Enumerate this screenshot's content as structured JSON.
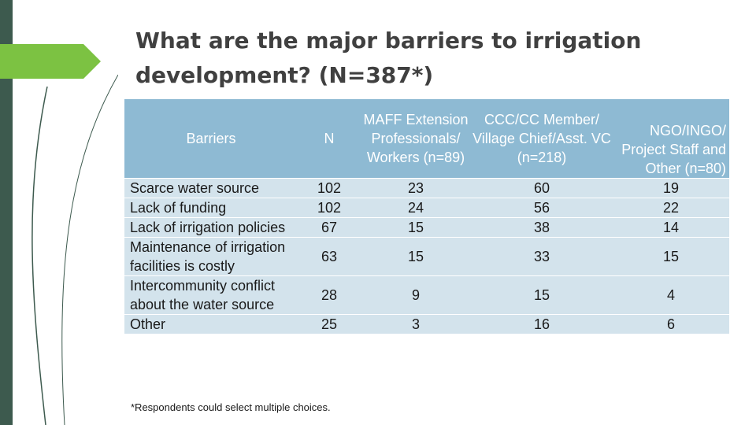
{
  "slide": {
    "title": "What are the major barriers to irrigation development? (N=387*)",
    "footnote": "*Respondents could select multiple choices.",
    "colors": {
      "accent_green": "#7cc242",
      "side_bar": "#3d5a4e",
      "header_bg": "#8ebad3",
      "row_bg": "#d3e3ec"
    }
  },
  "table": {
    "headers": [
      "Barriers",
      "N",
      "MAFF Extension Professionals/ Workers (n=89)",
      "CCC/CC Member/ Village Chief/Asst. VC (n=218)",
      "NGO/INGO/ Project Staff and Other (n=80)"
    ],
    "rows": [
      [
        "Scarce water source",
        "102",
        "23",
        "60",
        "19"
      ],
      [
        "Lack of funding",
        "102",
        "24",
        "56",
        "22"
      ],
      [
        "Lack of irrigation policies",
        "67",
        "15",
        "38",
        "14"
      ],
      [
        "Maintenance of irrigation facilities is costly",
        "63",
        "15",
        "33",
        "15"
      ],
      [
        "Intercommunity conflict about the water source",
        "28",
        "9",
        "15",
        "4"
      ],
      [
        "Other",
        "25",
        "3",
        "16",
        "6"
      ]
    ]
  }
}
